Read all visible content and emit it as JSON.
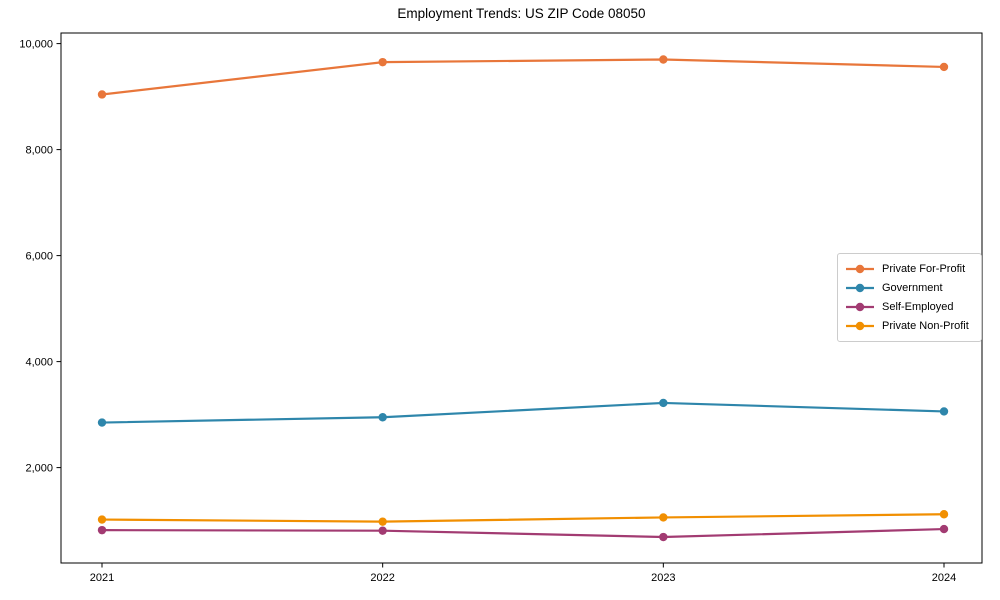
{
  "chart_data": {
    "type": "line",
    "title": "Employment Trends: US ZIP Code 08050",
    "x": [
      "2021",
      "2022",
      "2023",
      "2024"
    ],
    "series": [
      {
        "name": "Private For-Profit",
        "color": "#E8763A",
        "values": [
          9040,
          9650,
          9700,
          9560
        ]
      },
      {
        "name": "Government",
        "color": "#2E86AB",
        "values": [
          2850,
          2950,
          3220,
          3060
        ]
      },
      {
        "name": "Self-Employed",
        "color": "#A23B72",
        "values": [
          820,
          810,
          690,
          840
        ]
      },
      {
        "name": "Private Non-Profit",
        "color": "#F18F01",
        "values": [
          1020,
          980,
          1060,
          1120
        ]
      }
    ],
    "xlabel": "",
    "ylabel": "",
    "yticks": [
      2000,
      4000,
      6000,
      8000,
      10000
    ],
    "ylim": [
      200,
      10200
    ],
    "grid": false,
    "legend_position": "center-right",
    "axis_color": "#000000",
    "tick_label_color": "#000000",
    "background": "#ffffff"
  }
}
